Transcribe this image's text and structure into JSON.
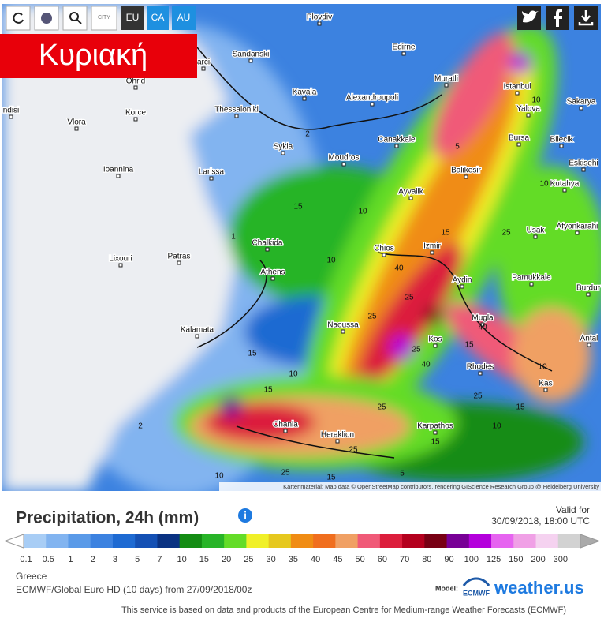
{
  "toolbar": {
    "buttons": [
      "CITY",
      "EU",
      "CA",
      "AU"
    ]
  },
  "day_label": "Κυριακή",
  "map": {
    "cities": [
      "Plovdiv",
      "Edirne",
      "Sandanski",
      "arci",
      "Ohrid",
      "Muratli",
      "Istanbul",
      "Kavala",
      "Alexandroupoli",
      "Yalova",
      "Sakarya",
      "Thessaloniki",
      "ndisi",
      "Vlora",
      "Korce",
      "Canakkale",
      "Bursa",
      "Bilecik",
      "Sykia",
      "Moudros",
      "Ioannina",
      "Larissa",
      "Balikesir",
      "Eskisehi",
      "Kutahya",
      "Ayvalik",
      "Usak",
      "Afyonkarahi",
      "Chalkida",
      "Patras",
      "Lixouri",
      "Chios",
      "Izmir",
      "Athens",
      "Aydin",
      "Pamukkale",
      "Burdur",
      "Naoussa",
      "Mugla",
      "Kalamata",
      "Kos",
      "Antal",
      "Rhodes",
      "Kas",
      "Chania",
      "Heraklion",
      "Karpathos"
    ],
    "contour_labels": [
      "10",
      "2",
      "5",
      "10",
      "15",
      "10",
      "15",
      "25",
      "1",
      "10",
      "40",
      "25",
      "25",
      "40",
      "15",
      "25",
      "40",
      "15",
      "10",
      "15",
      "25",
      "10",
      "25",
      "15",
      "2",
      "25",
      "25",
      "15",
      "5",
      "10",
      "10",
      "15"
    ],
    "attribution": "Kartenmaterial: Map data © OpenStreetMap contributors, rendering GIScience Research Group @ Heidelberg University"
  },
  "panel": {
    "title": "Precipitation, 24h (mm)",
    "valid_label": "Valid for",
    "valid_time": "30/09/2018, 18:00 UTC",
    "legend": [
      {
        "label": 0.1,
        "color": "#a8cdf5"
      },
      {
        "label": 0.5,
        "color": "#82b4f0"
      },
      {
        "label": 1,
        "color": "#5a9ae8"
      },
      {
        "label": 2,
        "color": "#3c82e0"
      },
      {
        "label": 3,
        "color": "#1e6ad2"
      },
      {
        "label": 5,
        "color": "#1450b4"
      },
      {
        "label": 7,
        "color": "#0a3282"
      },
      {
        "label": 10,
        "color": "#148c14"
      },
      {
        "label": 15,
        "color": "#28b428"
      },
      {
        "label": 20,
        "color": "#64dc28"
      },
      {
        "label": 25,
        "color": "#f0f028"
      },
      {
        "label": 30,
        "color": "#e6c81e"
      },
      {
        "label": 35,
        "color": "#f08c14"
      },
      {
        "label": 40,
        "color": "#f06e1e"
      },
      {
        "label": 45,
        "color": "#f0a064"
      },
      {
        "label": 50,
        "color": "#f05a78"
      },
      {
        "label": 60,
        "color": "#dc1e3c"
      },
      {
        "label": 70,
        "color": "#b4001e"
      },
      {
        "label": 80,
        "color": "#780014"
      },
      {
        "label": 90,
        "color": "#780096"
      },
      {
        "label": 100,
        "color": "#b400dc"
      },
      {
        "label": 125,
        "color": "#e664f0"
      },
      {
        "label": 150,
        "color": "#f0a0e6"
      },
      {
        "label": 200,
        "color": "#f5d2f0"
      },
      {
        "label": 300,
        "color": "#d2d2d2"
      }
    ],
    "region": "Greece",
    "model_run": "ECMWF/Global Euro HD (10 days) from 27/09/2018/00z",
    "model_label": "Model:",
    "model_logo": "ECMWF",
    "brand": "weather.us",
    "footer": "This service is based on data and products of the European Centre for Medium-range Weather Forecasts (ECMWF)"
  }
}
